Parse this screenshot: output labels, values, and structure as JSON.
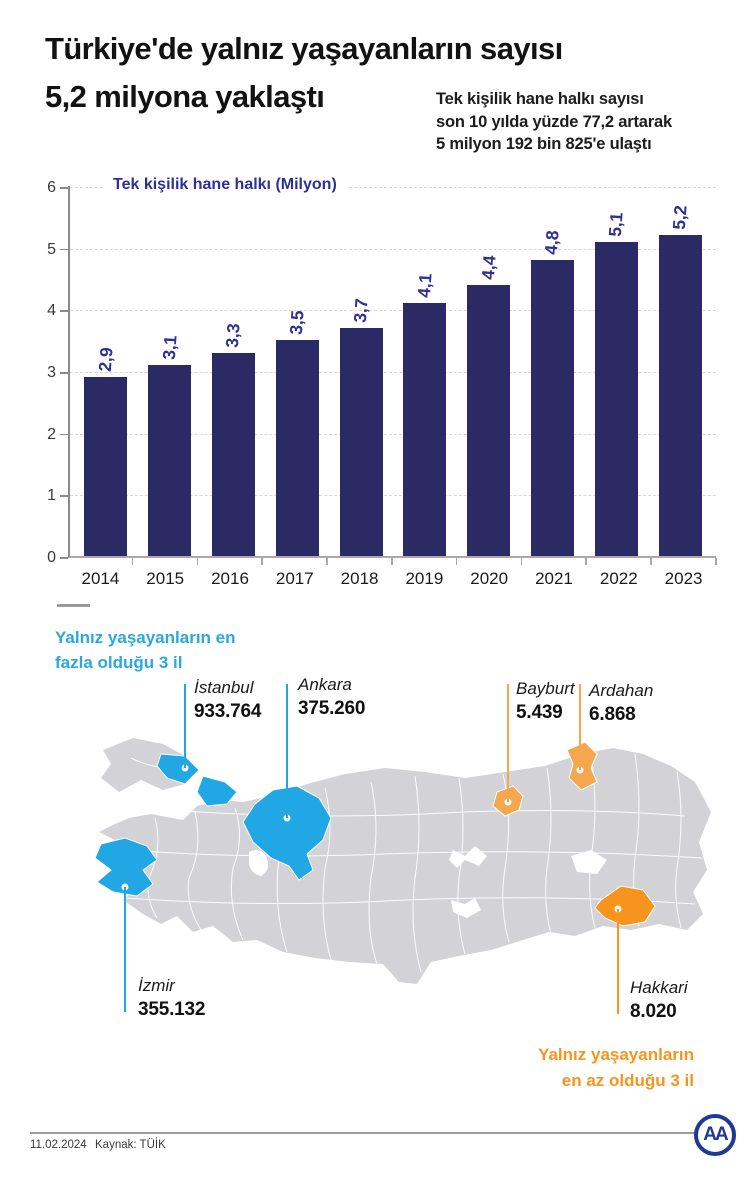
{
  "title_line1": "Türkiye'de yalnız yaşayanların sayısı",
  "title_line2": "5,2 milyona yaklaştı",
  "subtitle_lines": [
    "Tek kişilik hane halkı sayısı",
    "son 10 yılda yüzde 77,2 artarak",
    "5 milyon 192 bin 825'e ulaştı"
  ],
  "chart_data": {
    "type": "bar",
    "title": "Tek kişilik hane halkı (Milyon)",
    "categories": [
      "2014",
      "2015",
      "2016",
      "2017",
      "2018",
      "2019",
      "2020",
      "2021",
      "2022",
      "2023"
    ],
    "values": [
      2.9,
      3.1,
      3.3,
      3.5,
      3.7,
      4.1,
      4.4,
      4.8,
      5.1,
      5.2
    ],
    "value_labels": [
      "2,9",
      "3,1",
      "3,3",
      "3,5",
      "3,7",
      "4,1",
      "4,4",
      "4,8",
      "5,1",
      "5,2"
    ],
    "y_ticks": [
      0,
      1,
      2,
      3,
      4,
      5,
      6
    ],
    "ylim": [
      0,
      6
    ],
    "xlabel": "",
    "ylabel": "",
    "grid": "horizontal-dashed",
    "legend_position": "none"
  },
  "map": {
    "legend_most": {
      "line1": "Yalnız yaşayanların en",
      "line2": "fazla olduğu 3 il"
    },
    "legend_least": {
      "line1": "Yalnız yaşayanların",
      "line2": "en az olduğu 3 il"
    },
    "callouts": [
      {
        "id": "istanbul",
        "name": "İstanbul",
        "value": "933.764",
        "group": "most"
      },
      {
        "id": "ankara",
        "name": "Ankara",
        "value": "375.260",
        "group": "most"
      },
      {
        "id": "izmir",
        "name": "İzmir",
        "value": "355.132",
        "group": "most"
      },
      {
        "id": "bayburt",
        "name": "Bayburt",
        "value": "5.439",
        "group": "least"
      },
      {
        "id": "ardahan",
        "name": "Ardahan",
        "value": "6.868",
        "group": "least"
      },
      {
        "id": "hakkari",
        "name": "Hakkari",
        "value": "8.020",
        "group": "least"
      }
    ]
  },
  "footer": {
    "date": "11.02.2024",
    "source": "Kaynak: TÜİK",
    "logo_text": "AA"
  },
  "colors": {
    "bar-navy": "#2b2a64",
    "label-blue": "#2e3192",
    "cyan": "#22a7e5",
    "cyan-text": "#29a9e0",
    "orange": "#f7941d",
    "orange-light": "#f5a74f",
    "map-gray": "#d3d3d7"
  }
}
